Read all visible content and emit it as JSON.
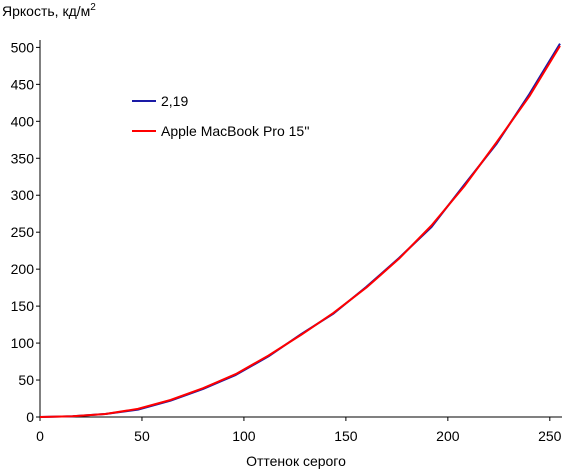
{
  "chart_data": {
    "type": "line",
    "title": "",
    "ylabel": "Яркость, кд/м",
    "ylabel_superscript": "2",
    "xlabel": "Оттенок серого",
    "xlim": [
      0,
      255
    ],
    "ylim": [
      0,
      510
    ],
    "x_ticks": [
      0,
      50,
      100,
      150,
      200,
      250
    ],
    "y_ticks": [
      0,
      50,
      100,
      150,
      200,
      250,
      300,
      350,
      400,
      450,
      500
    ],
    "grid": false,
    "legend_position": "upper-left",
    "series": [
      {
        "name": "2,19",
        "color": "#1a1aa6",
        "x": [
          0,
          16,
          32,
          48,
          64,
          80,
          96,
          112,
          128,
          144,
          160,
          176,
          192,
          208,
          224,
          240,
          255
        ],
        "y": [
          0,
          1,
          4,
          10,
          22,
          38,
          57,
          82,
          112,
          140,
          176,
          215,
          257,
          314,
          370,
          437,
          505
        ]
      },
      {
        "name": "Apple MacBook Pro 15''",
        "color": "#ff0000",
        "x": [
          0,
          16,
          32,
          48,
          64,
          80,
          96,
          112,
          128,
          144,
          160,
          176,
          192,
          208,
          224,
          240,
          255
        ],
        "y": [
          0,
          1,
          4,
          11,
          23,
          39,
          58,
          83,
          111,
          141,
          175,
          214,
          259,
          312,
          372,
          434,
          502
        ]
      }
    ]
  }
}
